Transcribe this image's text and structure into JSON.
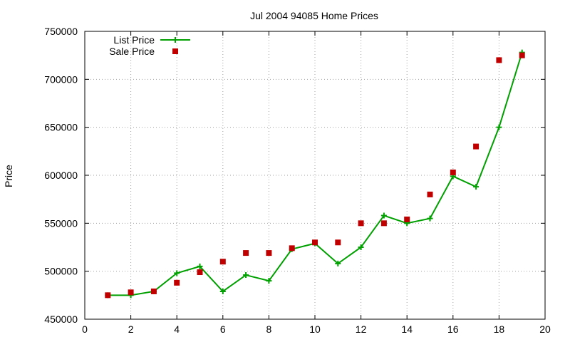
{
  "chart_data": {
    "type": "line",
    "title": "Jul 2004 94085 Home Prices",
    "xlabel": "",
    "ylabel": "Price",
    "xlim": [
      0,
      20
    ],
    "ylim": [
      450000,
      750000
    ],
    "xticks": [
      0,
      2,
      4,
      6,
      8,
      10,
      12,
      14,
      16,
      18,
      20
    ],
    "yticks": [
      450000,
      500000,
      550000,
      600000,
      650000,
      700000,
      750000
    ],
    "grid": true,
    "legend_position": "top-left",
    "series": [
      {
        "name": "List Price",
        "style": "line+cross",
        "color": "#00a000",
        "x": [
          1,
          2,
          3,
          4,
          5,
          6,
          7,
          8,
          9,
          10,
          11,
          12,
          13,
          14,
          15,
          16,
          17,
          18,
          19
        ],
        "y": [
          475000,
          475000,
          479000,
          498000,
          505000,
          479000,
          496000,
          490000,
          523000,
          529000,
          508000,
          525000,
          558000,
          550000,
          555000,
          599000,
          588000,
          650000,
          728000
        ]
      },
      {
        "name": "Sale Price",
        "style": "square-points",
        "color": "#c00000",
        "x": [
          1,
          2,
          3,
          4,
          5,
          6,
          7,
          8,
          9,
          10,
          11,
          12,
          13,
          14,
          15,
          16,
          17,
          18,
          19
        ],
        "y": [
          475000,
          478000,
          479000,
          488000,
          499000,
          510000,
          519000,
          519000,
          524000,
          530000,
          530000,
          550000,
          550000,
          554000,
          580000,
          603000,
          630000,
          720000,
          725000
        ]
      }
    ]
  }
}
